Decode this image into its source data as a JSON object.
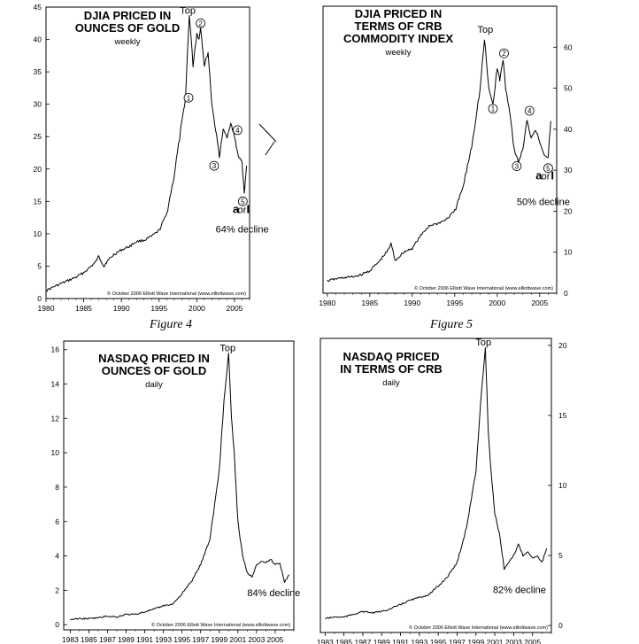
{
  "chart_data": [
    {
      "id": "c1",
      "type": "line",
      "title": "DJIA PRICED IN\nOUNCES OF GOLD",
      "subtitle": "weekly",
      "caption": "Figure 4",
      "axis_side": "left",
      "xlim": [
        1980,
        2007
      ],
      "ylim": [
        0,
        45
      ],
      "y_ticks": [
        0,
        5,
        10,
        15,
        20,
        25,
        30,
        35,
        40,
        45
      ],
      "x_ticks": [
        1980,
        1985,
        1990,
        1995,
        2000,
        2005
      ],
      "x_tick_labels": [
        "1980",
        "1985",
        "1990",
        "1995",
        "2000",
        "2005"
      ],
      "series": [
        {
          "x": [
            1980,
            1981,
            1982,
            1983,
            1984,
            1985,
            1986,
            1986.5,
            1987,
            1987.7,
            1988,
            1989,
            1990,
            1991,
            1992,
            1993,
            1994,
            1995,
            1996,
            1997,
            1998,
            1998.5,
            1999,
            1999.5,
            2000,
            2000.3,
            2000.5,
            2001,
            2001.5,
            2002,
            2002.5,
            2003,
            2003.5,
            2004,
            2004.5,
            2005,
            2005.5,
            2006,
            2006.3,
            2006.6
          ],
          "y": [
            1.2,
            1.8,
            2.3,
            2.8,
            3.3,
            4.0,
            5.0,
            5.5,
            6.5,
            5.0,
            5.6,
            6.8,
            7.5,
            8.0,
            8.8,
            9.0,
            9.6,
            10.5,
            13.0,
            19.0,
            27.0,
            31.0,
            44.0,
            36.0,
            41.0,
            40.0,
            42.0,
            36.0,
            38.0,
            30.0,
            26.0,
            22.0,
            26.0,
            25.0,
            27.0,
            25.0,
            22.0,
            21.0,
            16.0,
            20.5
          ]
        }
      ],
      "annotations": [
        {
          "text": "Top",
          "x": 1998.8,
          "y": 44,
          "kind": "label"
        },
        {
          "text": "1",
          "x": 1998.9,
          "y": 31,
          "kind": "wave"
        },
        {
          "text": "2",
          "x": 2000.5,
          "y": 42.5,
          "kind": "wave"
        },
        {
          "text": "3",
          "x": 2002.3,
          "y": 20.5,
          "kind": "wave"
        },
        {
          "text": "4",
          "x": 2005.4,
          "y": 26,
          "kind": "wave"
        },
        {
          "text": "5",
          "x": 2006.1,
          "y": 15,
          "kind": "wave"
        },
        {
          "text": "a",
          "x": 2005.2,
          "y": 13.2,
          "kind": "big"
        },
        {
          "text": "or",
          "x": 2006.0,
          "y": 13.2,
          "kind": "label"
        },
        {
          "text": "I",
          "x": 2006.8,
          "y": 13.2,
          "kind": "big"
        },
        {
          "text": "64% decline",
          "x": 2002.5,
          "y": 10.2,
          "kind": "note"
        }
      ],
      "copyright": "© October 2006 Elliott Wave International (www.elliottwave.com)"
    },
    {
      "id": "c2",
      "type": "line",
      "title": "DJIA PRICED IN\nTERMS OF CRB\nCOMMODITY INDEX",
      "subtitle": "weekly",
      "caption": "Figure 5",
      "axis_side": "right",
      "xlim": [
        1979.5,
        2007
      ],
      "ylim": [
        0,
        70
      ],
      "y_ticks": [
        0,
        10,
        20,
        30,
        40,
        50,
        60
      ],
      "x_ticks": [
        1980,
        1985,
        1990,
        1995,
        2000,
        2005
      ],
      "x_tick_labels": [
        "1980",
        "1985",
        "1990",
        "1995",
        "2000",
        "2005"
      ],
      "series": [
        {
          "x": [
            1980,
            1981,
            1982,
            1983,
            1984,
            1985,
            1986,
            1987,
            1987.5,
            1988,
            1989,
            1990,
            1991,
            1992,
            1993,
            1994,
            1995,
            1996,
            1997,
            1998,
            1998.5,
            1999,
            1999.5,
            2000,
            2000.3,
            2000.7,
            2001,
            2001.5,
            2002,
            2002.5,
            2003,
            2003.5,
            2004,
            2004.5,
            2005,
            2005.5,
            2006,
            2006.3
          ],
          "y": [
            3.0,
            3.5,
            3.8,
            4.0,
            4.5,
            5.5,
            7.5,
            10.0,
            12.0,
            8.0,
            10.0,
            11.0,
            14.0,
            16.5,
            17.0,
            18.0,
            20.0,
            26.0,
            36.0,
            50.0,
            62.0,
            50.0,
            46.0,
            55.0,
            52.0,
            57.0,
            50.0,
            44.0,
            35.0,
            32.0,
            35.0,
            42.0,
            38.0,
            40.0,
            37.0,
            34.0,
            33.0,
            42.0
          ]
        }
      ],
      "annotations": [
        {
          "text": "Top",
          "x": 1998.6,
          "y": 63.5,
          "kind": "label"
        },
        {
          "text": "1",
          "x": 1999.5,
          "y": 45.0,
          "kind": "wave"
        },
        {
          "text": "2",
          "x": 2000.8,
          "y": 58.5,
          "kind": "wave"
        },
        {
          "text": "3",
          "x": 2002.3,
          "y": 31.0,
          "kind": "wave"
        },
        {
          "text": "4",
          "x": 2003.8,
          "y": 44.5,
          "kind": "wave"
        },
        {
          "text": "5",
          "x": 2006.0,
          "y": 30.5,
          "kind": "wave"
        },
        {
          "text": "a",
          "x": 2004.9,
          "y": 27.8,
          "kind": "big"
        },
        {
          "text": "or",
          "x": 2005.7,
          "y": 27.8,
          "kind": "label"
        },
        {
          "text": "I",
          "x": 2006.5,
          "y": 27.8,
          "kind": "big"
        },
        {
          "text": "50% decline",
          "x": 2002.3,
          "y": 21.5,
          "kind": "note"
        }
      ],
      "copyright": "© October 2006 Elliott Wave International (www.elliottwave.com)"
    },
    {
      "id": "c3",
      "type": "line",
      "title": "NASDAQ PRICED IN\nOUNCES OF GOLD",
      "subtitle": "daily",
      "caption": "",
      "axis_side": "left",
      "xlim": [
        1982.3,
        2007
      ],
      "ylim": [
        -0.3,
        16.5
      ],
      "y_ticks": [
        0,
        2,
        4,
        6,
        8,
        10,
        12,
        14,
        16
      ],
      "x_ticks": [
        1983,
        1985,
        1987,
        1989,
        1991,
        1993,
        1995,
        1997,
        1999,
        2001,
        2003,
        2005
      ],
      "x_tick_labels": [
        "1983",
        "1985",
        "1987",
        "1989",
        "1991",
        "1993",
        "1995",
        "1997",
        "1999",
        "2001",
        "2003",
        "2005"
      ],
      "series": [
        {
          "x": [
            1983,
            1984,
            1985,
            1986,
            1987,
            1988,
            1989,
            1990,
            1991,
            1992,
            1993,
            1994,
            1995,
            1996,
            1997,
            1998,
            1998.5,
            1999,
            1999.5,
            2000,
            2000.3,
            2000.6,
            2001,
            2001.5,
            2002,
            2002.5,
            2003,
            2003.5,
            2004,
            2004.5,
            2005,
            2005.5,
            2006,
            2006.5
          ],
          "y": [
            0.3,
            0.35,
            0.35,
            0.4,
            0.5,
            0.45,
            0.6,
            0.6,
            0.75,
            0.9,
            1.1,
            1.2,
            1.8,
            2.5,
            3.5,
            5.0,
            7.0,
            9.0,
            13.0,
            15.8,
            12.0,
            10.0,
            6.0,
            4.0,
            3.0,
            2.8,
            3.5,
            3.7,
            3.6,
            3.8,
            3.5,
            3.6,
            2.5,
            2.9
          ]
        }
      ],
      "annotations": [
        {
          "text": "Top",
          "x": 1999.9,
          "y": 15.9,
          "kind": "label"
        },
        {
          "text": "84% decline",
          "x": 2002.0,
          "y": 1.65,
          "kind": "note"
        }
      ],
      "copyright": "© October 2006 Elliott Wave International (www.elliottwave.com)"
    },
    {
      "id": "c4",
      "type": "line",
      "title": "NASDAQ PRICED\nIN TERMS OF CRB",
      "subtitle": "daily",
      "caption": "",
      "axis_side": "right",
      "xlim": [
        1982.5,
        2007
      ],
      "ylim": [
        -0.5,
        20.5
      ],
      "y_ticks": [
        0,
        5,
        10,
        15,
        20
      ],
      "x_ticks": [
        1983,
        1985,
        1987,
        1989,
        1991,
        1993,
        1995,
        1997,
        1999,
        2001,
        2003,
        2005
      ],
      "x_tick_labels": [
        "1983",
        "1985",
        "1987",
        "1989",
        "1991",
        "1993",
        "1995",
        "1997",
        "1999",
        "2001",
        "2003",
        "2005"
      ],
      "series": [
        {
          "x": [
            1983,
            1984,
            1985,
            1986,
            1987,
            1988,
            1989,
            1990,
            1991,
            1992,
            1993,
            1994,
            1995,
            1996,
            1997,
            1998,
            1998.5,
            1999,
            1999.5,
            2000,
            2000.3,
            2000.6,
            2001,
            2001.5,
            2002,
            2002.5,
            2003,
            2003.5,
            2004,
            2004.5,
            2005,
            2005.5,
            2006,
            2006.5
          ],
          "y": [
            0.5,
            0.6,
            0.6,
            0.8,
            1.0,
            0.9,
            1.0,
            1.2,
            1.5,
            1.8,
            2.0,
            2.2,
            2.8,
            3.5,
            4.5,
            7.0,
            9.0,
            11.0,
            16.0,
            19.8,
            14.0,
            11.0,
            8.0,
            6.5,
            4.0,
            4.5,
            5.0,
            5.8,
            5.0,
            5.3,
            4.8,
            5.0,
            4.5,
            5.5
          ]
        }
      ],
      "annotations": [
        {
          "text": "Top",
          "x": 1999.8,
          "y": 20.0,
          "kind": "label"
        },
        {
          "text": "82% decline",
          "x": 2000.8,
          "y": 2.3,
          "kind": "note"
        }
      ],
      "copyright": "© October 2006 Elliott Wave International (www.elliottwave.com)"
    }
  ]
}
